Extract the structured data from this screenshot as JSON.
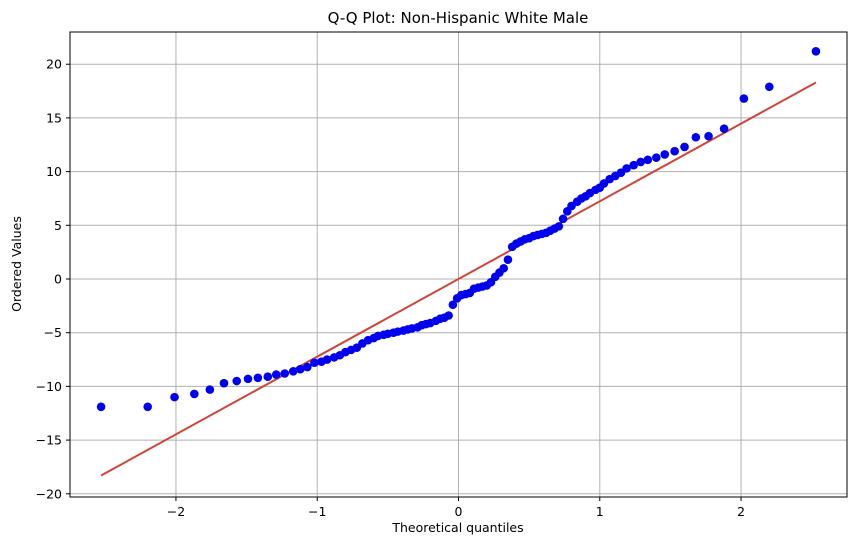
{
  "chart_data": {
    "type": "scatter",
    "title": "Q-Q Plot: Non-Hispanic White Male",
    "xlabel": "Theoretical quantiles",
    "ylabel": "Ordered Values",
    "xlim": [
      -2.75,
      2.75
    ],
    "ylim": [
      -20.3,
      23.0
    ],
    "grid": true,
    "x_ticks": [
      -2,
      -1,
      0,
      1,
      2
    ],
    "y_ticks": [
      -20,
      -15,
      -10,
      -5,
      0,
      5,
      10,
      15,
      20
    ],
    "x_tick_labels": [
      "−2",
      "−1",
      "0",
      "1",
      "2"
    ],
    "y_tick_labels": [
      "−20",
      "−15",
      "−10",
      "−5",
      "0",
      "5",
      "10",
      "15",
      "20"
    ],
    "colors": {
      "points": "#0000ee",
      "fit_line": "#d0443a"
    },
    "series": [
      {
        "kind": "points",
        "points": [
          [
            -2.53,
            -11.9
          ],
          [
            -2.2,
            -11.9
          ],
          [
            -2.01,
            -11.0
          ],
          [
            -1.87,
            -10.7
          ],
          [
            -1.76,
            -10.3
          ],
          [
            -1.66,
            -9.7
          ],
          [
            -1.57,
            -9.5
          ],
          [
            -1.49,
            -9.3
          ],
          [
            -1.42,
            -9.2
          ],
          [
            -1.35,
            -9.1
          ],
          [
            -1.29,
            -8.9
          ],
          [
            -1.23,
            -8.8
          ],
          [
            -1.17,
            -8.6
          ],
          [
            -1.12,
            -8.4
          ],
          [
            -1.07,
            -8.2
          ],
          [
            -1.02,
            -7.8
          ],
          [
            -0.97,
            -7.7
          ],
          [
            -0.93,
            -7.5
          ],
          [
            -0.88,
            -7.3
          ],
          [
            -0.84,
            -7.1
          ],
          [
            -0.8,
            -6.8
          ],
          [
            -0.76,
            -6.6
          ],
          [
            -0.72,
            -6.4
          ],
          [
            -0.68,
            -6.0
          ],
          [
            -0.64,
            -5.7
          ],
          [
            -0.6,
            -5.5
          ],
          [
            -0.57,
            -5.3
          ],
          [
            -0.53,
            -5.2
          ],
          [
            -0.5,
            -5.1
          ],
          [
            -0.46,
            -5.0
          ],
          [
            -0.43,
            -4.9
          ],
          [
            -0.39,
            -4.8
          ],
          [
            -0.36,
            -4.7
          ],
          [
            -0.33,
            -4.6
          ],
          [
            -0.29,
            -4.5
          ],
          [
            -0.26,
            -4.3
          ],
          [
            -0.23,
            -4.2
          ],
          [
            -0.2,
            -4.1
          ],
          [
            -0.16,
            -3.9
          ],
          [
            -0.13,
            -3.7
          ],
          [
            -0.1,
            -3.6
          ],
          [
            -0.07,
            -3.4
          ],
          [
            -0.04,
            -2.4
          ],
          [
            -0.01,
            -1.8
          ],
          [
            0.02,
            -1.5
          ],
          [
            0.05,
            -1.4
          ],
          [
            0.08,
            -1.3
          ],
          [
            0.11,
            -0.9
          ],
          [
            0.14,
            -0.8
          ],
          [
            0.17,
            -0.7
          ],
          [
            0.2,
            -0.6
          ],
          [
            0.23,
            -0.3
          ],
          [
            0.26,
            0.2
          ],
          [
            0.29,
            0.6
          ],
          [
            0.32,
            1.0
          ],
          [
            0.35,
            1.8
          ],
          [
            0.38,
            3.0
          ],
          [
            0.41,
            3.3
          ],
          [
            0.44,
            3.5
          ],
          [
            0.47,
            3.7
          ],
          [
            0.5,
            3.8
          ],
          [
            0.53,
            4.0
          ],
          [
            0.56,
            4.1
          ],
          [
            0.59,
            4.2
          ],
          [
            0.62,
            4.3
          ],
          [
            0.65,
            4.5
          ],
          [
            0.68,
            4.7
          ],
          [
            0.71,
            4.9
          ],
          [
            0.74,
            5.6
          ],
          [
            0.77,
            6.3
          ],
          [
            0.8,
            6.8
          ],
          [
            0.84,
            7.2
          ],
          [
            0.87,
            7.5
          ],
          [
            0.9,
            7.7
          ],
          [
            0.93,
            8.0
          ],
          [
            0.97,
            8.3
          ],
          [
            1.0,
            8.5
          ],
          [
            1.03,
            8.9
          ],
          [
            1.07,
            9.3
          ],
          [
            1.11,
            9.6
          ],
          [
            1.15,
            9.9
          ],
          [
            1.19,
            10.3
          ],
          [
            1.24,
            10.6
          ],
          [
            1.29,
            10.9
          ],
          [
            1.34,
            11.1
          ],
          [
            1.4,
            11.3
          ],
          [
            1.46,
            11.6
          ],
          [
            1.53,
            11.9
          ],
          [
            1.6,
            12.3
          ],
          [
            1.68,
            13.2
          ],
          [
            1.77,
            13.3
          ],
          [
            1.88,
            14.0
          ],
          [
            2.02,
            16.8
          ],
          [
            2.2,
            17.9
          ],
          [
            2.53,
            21.2
          ]
        ]
      },
      {
        "kind": "fit_line",
        "points": [
          [
            -2.53,
            -18.3
          ],
          [
            2.53,
            18.3
          ]
        ]
      }
    ]
  }
}
